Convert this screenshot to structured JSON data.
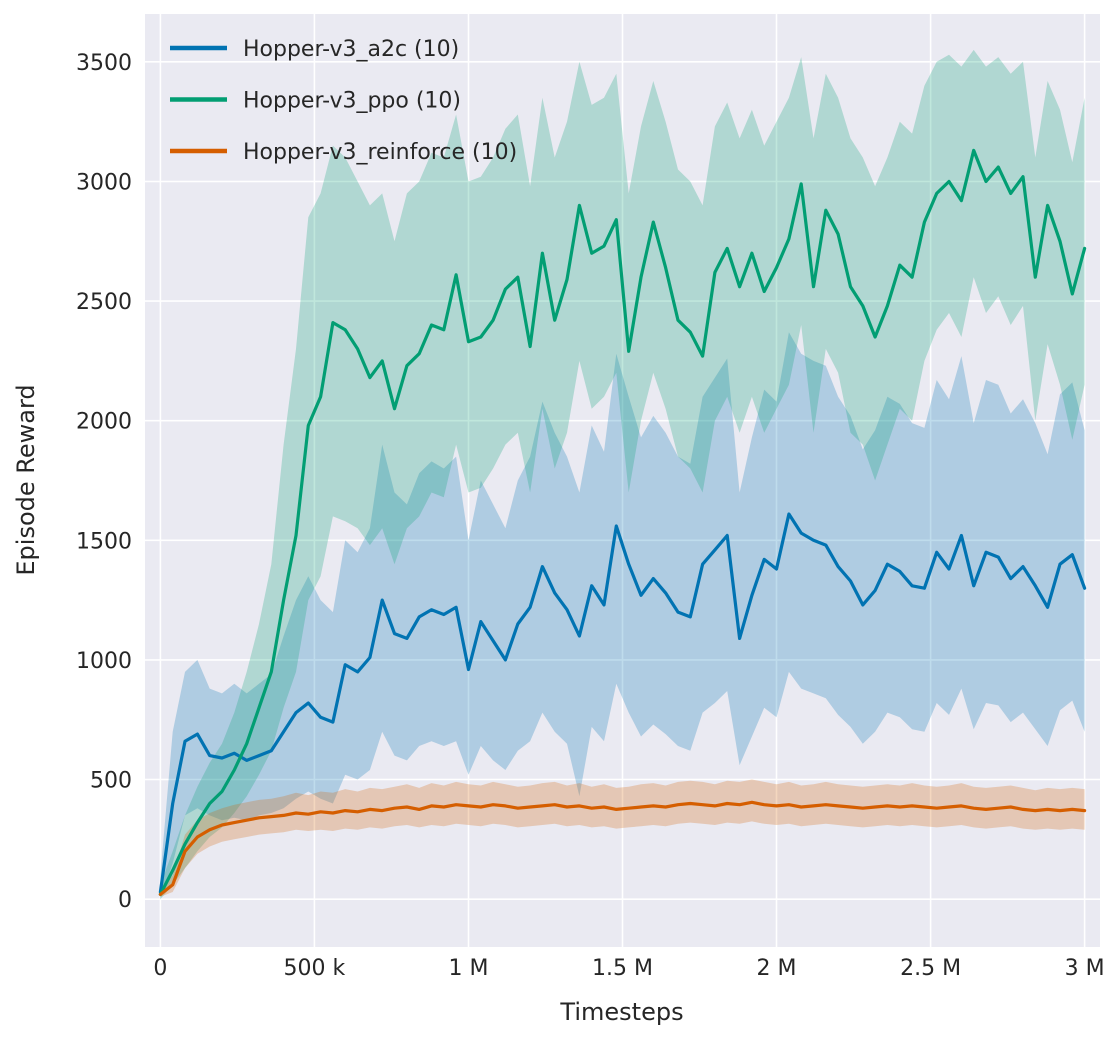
{
  "chart_data": {
    "type": "line",
    "title": "",
    "xlabel": "Timesteps",
    "ylabel": "Episode Reward",
    "x_units": "millions of timesteps",
    "x_tick_values": [
      0,
      0.5,
      1,
      1.5,
      2,
      2.5,
      3
    ],
    "x_tick_labels": [
      "0",
      "500 k",
      "1 M",
      "1.5 M",
      "2 M",
      "2.5 M",
      "3 M"
    ],
    "y_tick_values": [
      0,
      500,
      1000,
      1500,
      2000,
      2500,
      3000,
      3500
    ],
    "xlim": [
      -0.05,
      3.05
    ],
    "ylim": [
      -200,
      3700
    ],
    "grid": true,
    "legend_position": "upper left",
    "background_color": "#eaeaf2",
    "grid_color": "#ffffff",
    "text_color": "#262626",
    "band_alpha": 0.25,
    "x": [
      0,
      0.04,
      0.08,
      0.12,
      0.16,
      0.2,
      0.24,
      0.28,
      0.32,
      0.36,
      0.4,
      0.44,
      0.48,
      0.52,
      0.56,
      0.6,
      0.64,
      0.68,
      0.72,
      0.76,
      0.8,
      0.84,
      0.88,
      0.92,
      0.96,
      1,
      1.04,
      1.08,
      1.12,
      1.16,
      1.2,
      1.24,
      1.28,
      1.32,
      1.36,
      1.4,
      1.44,
      1.48,
      1.52,
      1.56,
      1.6,
      1.64,
      1.68,
      1.72,
      1.76,
      1.8,
      1.84,
      1.88,
      1.92,
      1.96,
      2,
      2.04,
      2.08,
      2.12,
      2.16,
      2.2,
      2.24,
      2.28,
      2.32,
      2.36,
      2.4,
      2.44,
      2.48,
      2.52,
      2.56,
      2.6,
      2.64,
      2.68,
      2.72,
      2.76,
      2.8,
      2.84,
      2.88,
      2.92,
      2.96,
      3
    ],
    "series": [
      {
        "name": "Hopper-v3_a2c (10)",
        "color": "#0173b2",
        "mean": [
          30,
          400,
          660,
          690,
          600,
          590,
          610,
          580,
          600,
          620,
          700,
          780,
          820,
          760,
          740,
          980,
          950,
          1010,
          1250,
          1110,
          1090,
          1180,
          1210,
          1190,
          1220,
          960,
          1160,
          1080,
          1000,
          1150,
          1220,
          1390,
          1280,
          1210,
          1100,
          1310,
          1230,
          1560,
          1400,
          1270,
          1340,
          1280,
          1200,
          1180,
          1400,
          1460,
          1520,
          1090,
          1270,
          1420,
          1380,
          1610,
          1530,
          1500,
          1480,
          1390,
          1330,
          1230,
          1290,
          1400,
          1370,
          1310,
          1300,
          1450,
          1380,
          1520,
          1310,
          1450,
          1430,
          1340,
          1390,
          1310,
          1220,
          1400,
          1440,
          1300
        ],
        "lo": [
          0,
          150,
          350,
          380,
          350,
          330,
          340,
          330,
          350,
          360,
          380,
          420,
          450,
          420,
          400,
          520,
          500,
          540,
          700,
          600,
          580,
          640,
          660,
          640,
          660,
          520,
          640,
          580,
          540,
          620,
          660,
          780,
          700,
          650,
          430,
          720,
          660,
          900,
          780,
          680,
          730,
          690,
          640,
          620,
          780,
          820,
          870,
          560,
          680,
          800,
          760,
          950,
          880,
          860,
          840,
          770,
          720,
          650,
          700,
          780,
          760,
          710,
          700,
          820,
          770,
          880,
          710,
          820,
          810,
          740,
          780,
          710,
          640,
          790,
          830,
          700
        ],
        "hi": [
          100,
          700,
          950,
          1000,
          880,
          860,
          900,
          860,
          900,
          940,
          1100,
          1250,
          1350,
          1250,
          1200,
          1500,
          1450,
          1550,
          1900,
          1700,
          1650,
          1780,
          1830,
          1800,
          1850,
          1500,
          1750,
          1650,
          1550,
          1750,
          1850,
          2080,
          1950,
          1850,
          1700,
          1980,
          1870,
          2280,
          2100,
          1930,
          2020,
          1950,
          1850,
          1820,
          2100,
          2180,
          2260,
          1700,
          1930,
          2130,
          2080,
          2370,
          2280,
          2250,
          2230,
          2100,
          2020,
          1880,
          1960,
          2100,
          2070,
          1990,
          1970,
          2170,
          2090,
          2270,
          1990,
          2170,
          2150,
          2030,
          2090,
          1990,
          1860,
          2110,
          2160,
          1960
        ]
      },
      {
        "name": "Hopper-v3_ppo (10)",
        "color": "#029e73",
        "mean": [
          20,
          120,
          230,
          320,
          400,
          450,
          540,
          650,
          800,
          950,
          1250,
          1520,
          1980,
          2100,
          2410,
          2380,
          2300,
          2180,
          2250,
          2050,
          2230,
          2280,
          2400,
          2380,
          2610,
          2330,
          2350,
          2420,
          2550,
          2600,
          2310,
          2700,
          2420,
          2590,
          2900,
          2700,
          2730,
          2840,
          2290,
          2600,
          2830,
          2640,
          2420,
          2370,
          2270,
          2620,
          2720,
          2560,
          2700,
          2540,
          2640,
          2760,
          2990,
          2560,
          2880,
          2780,
          2560,
          2480,
          2350,
          2480,
          2650,
          2600,
          2830,
          2950,
          3000,
          2920,
          3130,
          3000,
          3060,
          2950,
          3020,
          2600,
          2900,
          2750,
          2530,
          2720
        ],
        "lo": [
          0,
          60,
          130,
          200,
          260,
          300,
          360,
          430,
          520,
          620,
          800,
          950,
          1250,
          1350,
          1600,
          1580,
          1550,
          1480,
          1550,
          1400,
          1550,
          1600,
          1700,
          1680,
          1900,
          1700,
          1720,
          1800,
          1900,
          1950,
          1700,
          2050,
          1800,
          1950,
          2250,
          2050,
          2100,
          2200,
          1700,
          2000,
          2200,
          2050,
          1850,
          1800,
          1700,
          2000,
          2100,
          1950,
          2100,
          1950,
          2050,
          2150,
          2400,
          1950,
          2300,
          2200,
          1950,
          1900,
          1750,
          1900,
          2050,
          2000,
          2250,
          2380,
          2450,
          2350,
          2600,
          2450,
          2520,
          2400,
          2480,
          2000,
          2320,
          2150,
          1920,
          2150
        ],
        "hi": [
          60,
          200,
          350,
          470,
          570,
          650,
          780,
          950,
          1150,
          1400,
          1900,
          2300,
          2850,
          2950,
          3150,
          3100,
          3000,
          2900,
          2950,
          2750,
          2950,
          3000,
          3120,
          3100,
          3280,
          3000,
          3020,
          3100,
          3220,
          3280,
          2980,
          3350,
          3100,
          3250,
          3500,
          3320,
          3350,
          3450,
          2950,
          3230,
          3420,
          3250,
          3050,
          3000,
          2900,
          3230,
          3330,
          3180,
          3300,
          3150,
          3250,
          3350,
          3520,
          3180,
          3450,
          3350,
          3180,
          3100,
          2980,
          3100,
          3250,
          3200,
          3400,
          3500,
          3530,
          3480,
          3550,
          3480,
          3520,
          3450,
          3500,
          3100,
          3420,
          3300,
          3080,
          3350
        ]
      },
      {
        "name": "Hopper-v3_reinforce (10)",
        "color": "#d55e00",
        "mean": [
          20,
          60,
          200,
          260,
          290,
          310,
          320,
          330,
          340,
          345,
          350,
          360,
          355,
          365,
          360,
          370,
          365,
          375,
          370,
          380,
          385,
          375,
          390,
          385,
          395,
          390,
          385,
          395,
          390,
          380,
          385,
          390,
          395,
          385,
          390,
          380,
          385,
          375,
          380,
          385,
          390,
          385,
          395,
          400,
          395,
          390,
          400,
          395,
          405,
          395,
          390,
          395,
          385,
          390,
          395,
          390,
          385,
          380,
          385,
          390,
          385,
          390,
          385,
          380,
          385,
          390,
          380,
          375,
          380,
          385,
          375,
          370,
          375,
          370,
          375,
          370
        ],
        "lo": [
          10,
          30,
          130,
          190,
          220,
          240,
          250,
          260,
          270,
          275,
          280,
          290,
          285,
          290,
          285,
          295,
          290,
          300,
          295,
          305,
          310,
          300,
          310,
          305,
          315,
          310,
          305,
          315,
          310,
          300,
          305,
          310,
          315,
          305,
          310,
          300,
          305,
          295,
          300,
          305,
          310,
          305,
          315,
          320,
          315,
          310,
          320,
          315,
          325,
          315,
          310,
          315,
          305,
          310,
          315,
          310,
          305,
          300,
          305,
          310,
          305,
          310,
          305,
          300,
          305,
          310,
          300,
          295,
          300,
          305,
          295,
          290,
          295,
          290,
          295,
          290
        ],
        "hi": [
          40,
          100,
          270,
          330,
          360,
          380,
          395,
          405,
          415,
          420,
          430,
          445,
          435,
          450,
          445,
          460,
          450,
          465,
          460,
          470,
          480,
          465,
          485,
          475,
          490,
          480,
          475,
          490,
          480,
          470,
          475,
          485,
          490,
          475,
          485,
          470,
          480,
          465,
          470,
          480,
          485,
          475,
          490,
          495,
          490,
          480,
          495,
          490,
          500,
          490,
          480,
          490,
          475,
          480,
          490,
          480,
          475,
          470,
          475,
          480,
          475,
          485,
          475,
          470,
          475,
          485,
          470,
          465,
          470,
          475,
          465,
          455,
          465,
          460,
          465,
          460
        ]
      }
    ]
  }
}
